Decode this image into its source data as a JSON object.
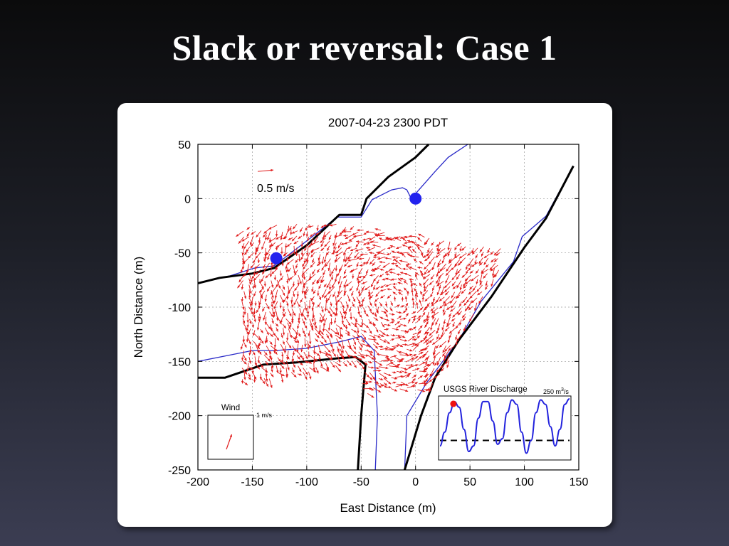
{
  "slide": {
    "title": "Slack or reversal: Case 1"
  },
  "chart_data": [
    {
      "type": "quiver",
      "title": "2007-04-23 2300 PDT",
      "xlabel": "East Distance (m)",
      "ylabel": "North Distance (m)",
      "xlim": [
        -200,
        150
      ],
      "ylim": [
        -250,
        50
      ],
      "xticks": [
        -200,
        -150,
        -100,
        -50,
        0,
        50,
        100,
        150
      ],
      "yticks": [
        50,
        0,
        -50,
        -100,
        -150,
        -200,
        -250
      ],
      "grid": true,
      "scale_arrow": {
        "label": "0.5 m/s",
        "x": -145,
        "y": 25,
        "u": 0.5,
        "v": 0.05
      },
      "stations": [
        {
          "x": -128,
          "y": -55
        },
        {
          "x": 0,
          "y": 0
        }
      ],
      "shorelines_black": [
        [
          [
            -200,
            -78
          ],
          [
            -180,
            -73
          ],
          [
            -150,
            -69
          ],
          [
            -130,
            -64
          ],
          [
            -100,
            -43
          ],
          [
            -70,
            -15
          ],
          [
            -50,
            -15
          ],
          [
            -45,
            0
          ],
          [
            -25,
            20
          ],
          [
            0,
            38
          ],
          [
            12,
            50
          ]
        ],
        [
          [
            -200,
            -165
          ],
          [
            -175,
            -165
          ],
          [
            -140,
            -153
          ],
          [
            -110,
            -151
          ],
          [
            -70,
            -147
          ],
          [
            -55,
            -146
          ],
          [
            -46,
            -153
          ],
          [
            -50,
            -200
          ],
          [
            -53,
            -250
          ]
        ],
        [
          [
            -10,
            -250
          ],
          [
            5,
            -200
          ],
          [
            18,
            -165
          ],
          [
            40,
            -130
          ],
          [
            70,
            -90
          ],
          [
            100,
            -45
          ],
          [
            120,
            -18
          ],
          [
            145,
            30
          ]
        ]
      ],
      "shorelines_blue": [
        [
          [
            -200,
            -78
          ],
          [
            -170,
            -71
          ],
          [
            -148,
            -64
          ],
          [
            -130,
            -62
          ],
          [
            -100,
            -39
          ],
          [
            -72,
            -17
          ],
          [
            -50,
            -17
          ],
          [
            -40,
            -1
          ],
          [
            -22,
            8
          ],
          [
            -12,
            10
          ],
          [
            -8,
            8
          ],
          [
            -4,
            0
          ],
          [
            18,
            25
          ],
          [
            30,
            38
          ],
          [
            48,
            50
          ]
        ],
        [
          [
            -200,
            -150
          ],
          [
            -175,
            -145
          ],
          [
            -150,
            -140
          ],
          [
            -130,
            -140
          ],
          [
            -100,
            -138
          ],
          [
            -70,
            -132
          ],
          [
            -50,
            -127
          ],
          [
            -38,
            -140
          ],
          [
            -35,
            -200
          ],
          [
            -37,
            -250
          ]
        ],
        [
          [
            -10,
            -250
          ],
          [
            -8,
            -200
          ],
          [
            10,
            -170
          ],
          [
            40,
            -130
          ],
          [
            60,
            -95
          ],
          [
            90,
            -58
          ],
          [
            98,
            -35
          ],
          [
            120,
            -16
          ],
          [
            145,
            30
          ]
        ]
      ],
      "wind_inset": {
        "label": "Wind",
        "scale_label": "1 m/s",
        "u": 0.15,
        "v": 0.5
      },
      "discharge_inset": {
        "title": "USGS River Discharge",
        "scale_label": "250 m3/s",
        "series": [
          0.15,
          0.4,
          0.75,
          0.95,
          0.85,
          0.45,
          0.05,
          0.15,
          0.65,
          0.95,
          0.95,
          0.6,
          0.18,
          0.28,
          0.75,
          0.98,
          0.9,
          0.4,
          0.02,
          0.25,
          0.75,
          0.98,
          0.9,
          0.5,
          0.15,
          0.45,
          0.9,
          1.0
        ],
        "threshold": 0.25,
        "current_index": 2.8
      }
    }
  ]
}
